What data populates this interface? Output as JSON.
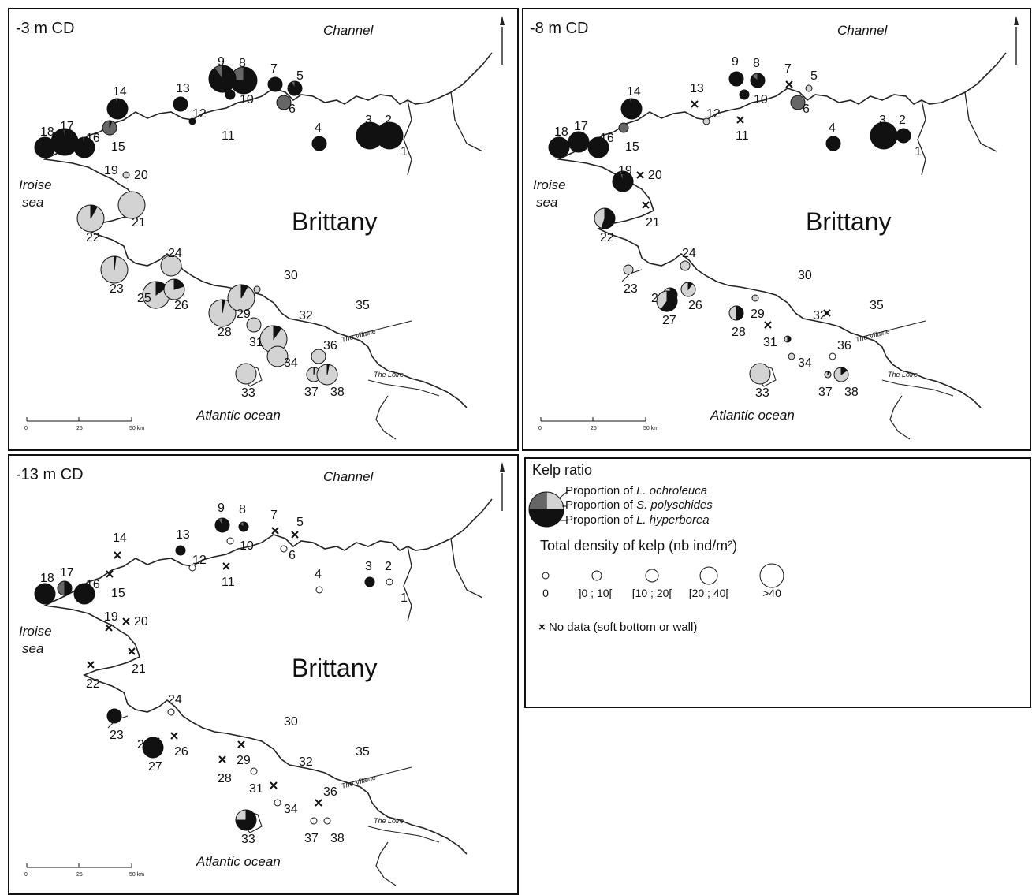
{
  "panels": [
    {
      "depth_label": "-3 m CD",
      "channel_label": "Channel",
      "region_label": "Brittany",
      "iroise_label_1": "Iroise",
      "iroise_label_2": "sea",
      "ocean_label": "Atlantic ocean",
      "vilaine_label": "The Vilaine",
      "loire_label": "The Loire",
      "scale_labels": [
        "0",
        "25",
        "50 km"
      ],
      "sites": [
        {
          "n": "1",
          "size": "none"
        },
        {
          "n": "2",
          "size": "xl",
          "comp": {
            "hyp": 1,
            "pol": 0,
            "och": 0
          }
        },
        {
          "n": "3",
          "size": "xl",
          "comp": {
            "hyp": 1,
            "pol": 0,
            "och": 0
          }
        },
        {
          "n": "4",
          "size": "md",
          "comp": {
            "hyp": 1,
            "pol": 0,
            "och": 0
          }
        },
        {
          "n": "5",
          "size": "md",
          "comp": {
            "hyp": 0.92,
            "pol": 0.08,
            "och": 0
          }
        },
        {
          "n": "6",
          "size": "md",
          "comp": {
            "hyp": 0,
            "pol": 1,
            "och": 0
          }
        },
        {
          "n": "7",
          "size": "md",
          "comp": {
            "hyp": 1,
            "pol": 0,
            "och": 0
          }
        },
        {
          "n": "8",
          "size": "xl",
          "comp": {
            "hyp": 0.75,
            "pol": 0.25,
            "och": 0
          }
        },
        {
          "n": "9",
          "size": "xl",
          "comp": {
            "hyp": 0.9,
            "pol": 0.1,
            "och": 0
          }
        },
        {
          "n": "10",
          "size": "sm",
          "comp": {
            "hyp": 1,
            "pol": 0,
            "och": 0
          }
        },
        {
          "n": "11",
          "size": "none"
        },
        {
          "n": "12",
          "size": "xs",
          "comp": {
            "hyp": 1,
            "pol": 0,
            "och": 0
          }
        },
        {
          "n": "13",
          "size": "md",
          "comp": {
            "hyp": 1,
            "pol": 0,
            "och": 0
          }
        },
        {
          "n": "14",
          "size": "lg",
          "comp": {
            "hyp": 0.97,
            "pol": 0.03,
            "och": 0
          }
        },
        {
          "n": "15",
          "size": "md",
          "comp": {
            "hyp": 0.05,
            "pol": 0.95,
            "och": 0
          }
        },
        {
          "n": "16",
          "size": "lg",
          "comp": {
            "hyp": 0.97,
            "pol": 0.03,
            "och": 0
          }
        },
        {
          "n": "17",
          "size": "xl",
          "comp": {
            "hyp": 0.98,
            "pol": 0.02,
            "och": 0
          }
        },
        {
          "n": "18",
          "size": "lg",
          "comp": {
            "hyp": 1,
            "pol": 0,
            "och": 0
          }
        },
        {
          "n": "19",
          "size": "none"
        },
        {
          "n": "20",
          "size": "xs",
          "comp": {
            "hyp": 0,
            "pol": 0,
            "och": 1
          }
        },
        {
          "n": "21",
          "size": "xl",
          "comp": {
            "hyp": 0,
            "pol": 0,
            "och": 1
          }
        },
        {
          "n": "22",
          "size": "xl",
          "comp": {
            "hyp": 0.08,
            "pol": 0,
            "och": 0.92
          }
        },
        {
          "n": "23",
          "size": "xl",
          "comp": {
            "hyp": 0.02,
            "pol": 0,
            "och": 0.98
          }
        },
        {
          "n": "24",
          "size": "lg",
          "comp": {
            "hyp": 0,
            "pol": 0,
            "och": 1
          }
        },
        {
          "n": "25",
          "size": "xl",
          "comp": {
            "hyp": 0.15,
            "pol": 0,
            "och": 0.85
          }
        },
        {
          "n": "26",
          "size": "lg",
          "comp": {
            "hyp": 0.2,
            "pol": 0,
            "och": 0.8
          }
        },
        {
          "n": "28",
          "size": "xl",
          "comp": {
            "hyp": 0.03,
            "pol": 0,
            "och": 0.97
          }
        },
        {
          "n": "29",
          "size": "xl",
          "comp": {
            "hyp": 0.08,
            "pol": 0,
            "och": 0.92
          }
        },
        {
          "n": "30",
          "size": "xs",
          "comp": {
            "hyp": 0,
            "pol": 0,
            "och": 1
          }
        },
        {
          "n": "31",
          "size": "md",
          "comp": {
            "hyp": 0,
            "pol": 0,
            "och": 1
          }
        },
        {
          "n": "32",
          "size": "xl",
          "comp": {
            "hyp": 0.1,
            "pol": 0,
            "och": 0.9
          }
        },
        {
          "n": "33",
          "size": "lg",
          "comp": {
            "hyp": 0,
            "pol": 0,
            "och": 1
          }
        },
        {
          "n": "34",
          "size": "lg",
          "comp": {
            "hyp": 0,
            "pol": 0,
            "och": 1
          }
        },
        {
          "n": "35",
          "size": "none"
        },
        {
          "n": "36",
          "size": "md",
          "comp": {
            "hyp": 0,
            "pol": 0,
            "och": 1
          }
        },
        {
          "n": "37",
          "size": "md",
          "comp": {
            "hyp": 0.03,
            "pol": 0,
            "och": 0.97
          }
        },
        {
          "n": "38",
          "size": "lg",
          "comp": {
            "hyp": 0.03,
            "pol": 0,
            "och": 0.97
          }
        }
      ]
    },
    {
      "depth_label": "-8 m CD",
      "channel_label": "Channel",
      "region_label": "Brittany",
      "iroise_label_1": "Iroise",
      "iroise_label_2": "sea",
      "ocean_label": "Atlantic ocean",
      "vilaine_label": "The Vilaine",
      "loire_label": "The Loire",
      "scale_labels": [
        "0",
        "25",
        "50 km"
      ],
      "sites": [
        {
          "n": "1",
          "size": "none"
        },
        {
          "n": "2",
          "size": "md",
          "comp": {
            "hyp": 1,
            "pol": 0,
            "och": 0
          }
        },
        {
          "n": "3",
          "size": "xl",
          "comp": {
            "hyp": 1,
            "pol": 0,
            "och": 0
          }
        },
        {
          "n": "4",
          "size": "md",
          "comp": {
            "hyp": 1,
            "pol": 0,
            "och": 0
          }
        },
        {
          "n": "5",
          "size": "xs",
          "comp": {
            "hyp": 0,
            "pol": 0,
            "och": 1
          }
        },
        {
          "n": "6",
          "size": "md",
          "comp": {
            "hyp": 0,
            "pol": 1,
            "och": 0
          }
        },
        {
          "n": "7",
          "size": "nodata"
        },
        {
          "n": "8",
          "size": "md",
          "comp": {
            "hyp": 0.85,
            "pol": 0.15,
            "och": 0
          }
        },
        {
          "n": "9",
          "size": "md",
          "comp": {
            "hyp": 1,
            "pol": 0,
            "och": 0
          }
        },
        {
          "n": "10",
          "size": "sm",
          "comp": {
            "hyp": 1,
            "pol": 0,
            "och": 0
          }
        },
        {
          "n": "11",
          "size": "nodata"
        },
        {
          "n": "12",
          "size": "xs",
          "comp": {
            "hyp": 0,
            "pol": 0,
            "och": 1
          }
        },
        {
          "n": "13",
          "size": "nodata"
        },
        {
          "n": "14",
          "size": "lg",
          "comp": {
            "hyp": 0.97,
            "pol": 0.03,
            "och": 0
          }
        },
        {
          "n": "15",
          "size": "sm",
          "comp": {
            "hyp": 0,
            "pol": 1,
            "och": 0
          }
        },
        {
          "n": "16",
          "size": "lg",
          "comp": {
            "hyp": 1,
            "pol": 0,
            "och": 0
          }
        },
        {
          "n": "17",
          "size": "lg",
          "comp": {
            "hyp": 1,
            "pol": 0,
            "och": 0
          }
        },
        {
          "n": "18",
          "size": "lg",
          "comp": {
            "hyp": 1,
            "pol": 0,
            "och": 0
          }
        },
        {
          "n": "19",
          "size": "lg",
          "comp": {
            "hyp": 0.95,
            "pol": 0.05,
            "och": 0
          }
        },
        {
          "n": "20",
          "size": "nodata"
        },
        {
          "n": "21",
          "size": "nodata"
        },
        {
          "n": "22",
          "size": "lg",
          "comp": {
            "hyp": 0.55,
            "pol": 0,
            "och": 0.45
          }
        },
        {
          "n": "23",
          "size": "sm",
          "comp": {
            "hyp": 0,
            "pol": 0,
            "och": 1
          }
        },
        {
          "n": "24",
          "size": "sm",
          "comp": {
            "hyp": 0,
            "pol": 0,
            "och": 1
          }
        },
        {
          "n": "25",
          "size": "md",
          "comp": {
            "hyp": 0.8,
            "pol": 0,
            "och": 0.2
          }
        },
        {
          "n": "26",
          "size": "md",
          "comp": {
            "hyp": 0.1,
            "pol": 0,
            "och": 0.9
          }
        },
        {
          "n": "27",
          "size": "lg",
          "comp": {
            "hyp": 0.6,
            "pol": 0,
            "och": 0.4
          }
        },
        {
          "n": "28",
          "size": "md",
          "comp": {
            "hyp": 0.5,
            "pol": 0,
            "och": 0.5
          }
        },
        {
          "n": "29",
          "size": "xs",
          "comp": {
            "hyp": 0,
            "pol": 0,
            "och": 1
          }
        },
        {
          "n": "30",
          "size": "none"
        },
        {
          "n": "31",
          "size": "nodata"
        },
        {
          "n": "32",
          "size": "xs",
          "comp": {
            "hyp": 0.5,
            "pol": 0,
            "och": 0.5
          }
        },
        {
          "n": "33",
          "size": "lg",
          "comp": {
            "hyp": 0,
            "pol": 0,
            "och": 1
          }
        },
        {
          "n": "34",
          "size": "xs",
          "comp": {
            "hyp": 0,
            "pol": 0,
            "och": 1
          }
        },
        {
          "n": "35",
          "size": "nodata"
        },
        {
          "n": "36",
          "size": "xs",
          "comp": {
            "hyp": 0,
            "pol": 0,
            "och": 0
          }
        },
        {
          "n": "37",
          "size": "xs",
          "comp": {
            "hyp": 0.1,
            "pol": 0,
            "och": 0.9
          }
        },
        {
          "n": "38",
          "size": "md",
          "comp": {
            "hyp": 0.15,
            "pol": 0,
            "och": 0.85
          }
        }
      ]
    },
    {
      "depth_label": "-13 m CD",
      "channel_label": "Channel",
      "region_label": "Brittany",
      "iroise_label_1": "Iroise",
      "iroise_label_2": "sea",
      "ocean_label": "Atlantic ocean",
      "vilaine_label": "The Vilaine",
      "loire_label": "The Loire",
      "scale_labels": [
        "0",
        "25",
        "50 km"
      ],
      "sites": [
        {
          "n": "1",
          "size": "none"
        },
        {
          "n": "2",
          "size": "xs",
          "comp": {
            "hyp": 0,
            "pol": 0,
            "och": 0
          }
        },
        {
          "n": "3",
          "size": "sm",
          "comp": {
            "hyp": 1,
            "pol": 0,
            "och": 0
          }
        },
        {
          "n": "4",
          "size": "xs",
          "comp": {
            "hyp": 0,
            "pol": 0,
            "och": 0
          }
        },
        {
          "n": "5",
          "size": "nodata"
        },
        {
          "n": "6",
          "size": "xs",
          "comp": {
            "hyp": 0,
            "pol": 0,
            "och": 0
          }
        },
        {
          "n": "7",
          "size": "nodata"
        },
        {
          "n": "8",
          "size": "sm",
          "comp": {
            "hyp": 0.85,
            "pol": 0.15,
            "och": 0
          }
        },
        {
          "n": "9",
          "size": "md",
          "comp": {
            "hyp": 0.9,
            "pol": 0.1,
            "och": 0
          }
        },
        {
          "n": "10",
          "size": "xs",
          "comp": {
            "hyp": 0,
            "pol": 0,
            "och": 0
          }
        },
        {
          "n": "11",
          "size": "nodata"
        },
        {
          "n": "12",
          "size": "xs",
          "comp": {
            "hyp": 0,
            "pol": 0,
            "och": 0
          }
        },
        {
          "n": "13",
          "size": "sm",
          "comp": {
            "hyp": 1,
            "pol": 0,
            "och": 0
          }
        },
        {
          "n": "14",
          "size": "nodata"
        },
        {
          "n": "15",
          "size": "nodata"
        },
        {
          "n": "16",
          "size": "lg",
          "comp": {
            "hyp": 1,
            "pol": 0,
            "och": 0
          }
        },
        {
          "n": "17",
          "size": "md",
          "comp": {
            "hyp": 0.5,
            "pol": 0.5,
            "och": 0
          }
        },
        {
          "n": "18",
          "size": "lg",
          "comp": {
            "hyp": 1,
            "pol": 0,
            "och": 0
          }
        },
        {
          "n": "19",
          "size": "nodata"
        },
        {
          "n": "20",
          "size": "nodata"
        },
        {
          "n": "21",
          "size": "nodata"
        },
        {
          "n": "22",
          "size": "nodata"
        },
        {
          "n": "23",
          "size": "md",
          "comp": {
            "hyp": 1,
            "pol": 0,
            "och": 0
          }
        },
        {
          "n": "24",
          "size": "xs",
          "comp": {
            "hyp": 0,
            "pol": 0,
            "och": 0
          }
        },
        {
          "n": "25",
          "size": "nodata"
        },
        {
          "n": "26",
          "size": "nodata"
        },
        {
          "n": "27",
          "size": "lg",
          "comp": {
            "hyp": 1,
            "pol": 0,
            "och": 0
          }
        },
        {
          "n": "28",
          "size": "nodata"
        },
        {
          "n": "29",
          "size": "nodata"
        },
        {
          "n": "30",
          "size": "none"
        },
        {
          "n": "31",
          "size": "xs",
          "comp": {
            "hyp": 0,
            "pol": 0,
            "och": 0
          }
        },
        {
          "n": "32",
          "size": "nodata"
        },
        {
          "n": "33",
          "size": "lg",
          "comp": {
            "hyp": 0.75,
            "pol": 0,
            "och": 0.25
          }
        },
        {
          "n": "34",
          "size": "xs",
          "comp": {
            "hyp": 0,
            "pol": 0,
            "och": 0
          }
        },
        {
          "n": "35",
          "size": "none"
        },
        {
          "n": "36",
          "size": "nodata"
        },
        {
          "n": "37",
          "size": "xs",
          "comp": {
            "hyp": 0,
            "pol": 0,
            "och": 0
          }
        },
        {
          "n": "38",
          "size": "xs",
          "comp": {
            "hyp": 0,
            "pol": 0,
            "och": 0
          }
        }
      ]
    }
  ],
  "legend": {
    "title": "Kelp ratio",
    "och_prefix": "Proportion of ",
    "och_species": "L. ochroleuca",
    "pol_prefix": "Proportion of ",
    "pol_species": "S. polyschides",
    "hyp_prefix": "Proportion of ",
    "hyp_species": "L. hyperborea",
    "density_title": "Total density of kelp (nb ind/m²)",
    "density_classes": [
      "0",
      "]0 ; 10[",
      "[10 ; 20[",
      "[20 ; 40[",
      ">40"
    ],
    "no_data": "No data (soft bottom or wall)",
    "no_data_symbol": "×"
  },
  "colors": {
    "hyperborea": "#111111",
    "polyschides": "#666666",
    "ochroleuca": "#d3d3d3"
  }
}
